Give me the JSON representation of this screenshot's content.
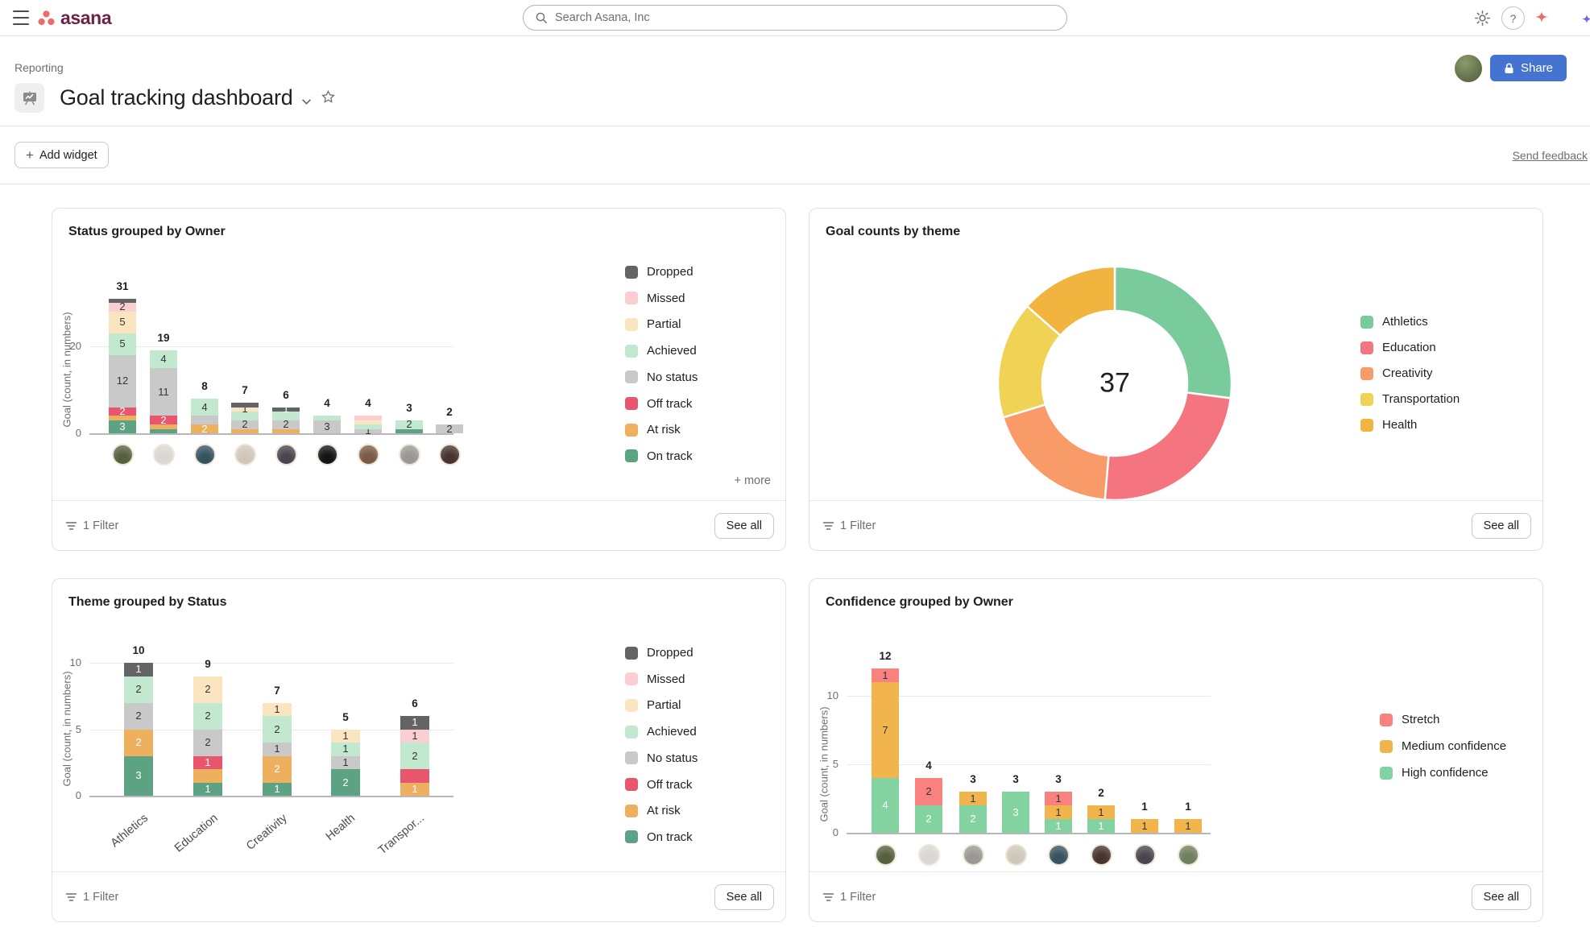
{
  "topbar": {
    "brand": "asana",
    "search_placeholder": "Search Asana, Inc"
  },
  "header": {
    "breadcrumb": "Reporting",
    "title": "Goal tracking dashboard",
    "share_label": "Share"
  },
  "toolbar": {
    "add_widget_plus": "+",
    "add_widget_label": "Add widget",
    "send_feedback_label": "Send feedback"
  },
  "footer_labels": {
    "filter": "1 Filter",
    "see_all": "See all"
  },
  "accent_colors": {
    "share_button": "#4573d2",
    "brand_coral": "#f06a6a",
    "wordmark": "#6d2347"
  },
  "segment_colors": {
    "dropped": "#646467",
    "missed": "#fbced3",
    "partial": "#fbe5c1",
    "achieved": "#c2e8cf",
    "no_status": "#c9c9c9",
    "off_track": "#e8566d",
    "at_risk": "#ecb05e",
    "on_track": "#5da283",
    "stretch": "#f9827e",
    "medium": "#f2b44c",
    "high": "#82d3a0"
  },
  "chart_data": [
    {
      "id": "status-by-owner",
      "type": "stacked_bar",
      "title": "Status grouped by Owner",
      "ylabel": "Goal (count, in numbers)",
      "y_ticks": [
        0,
        20
      ],
      "ylim": [
        0,
        33
      ],
      "grid": true,
      "legend_position": "right",
      "legend_more": "+ more",
      "x_axis": "owners (avatars)",
      "legend": [
        {
          "key": "dropped",
          "label": "Dropped",
          "color": "#646467"
        },
        {
          "key": "missed",
          "label": "Missed",
          "color": "#fbced3"
        },
        {
          "key": "partial",
          "label": "Partial",
          "color": "#fbe5c1"
        },
        {
          "key": "achieved",
          "label": "Achieved",
          "color": "#c2e8cf"
        },
        {
          "key": "no_status",
          "label": "No status",
          "color": "#c9c9c9"
        },
        {
          "key": "off_track",
          "label": "Off track",
          "color": "#e8566d"
        },
        {
          "key": "at_risk",
          "label": "At risk",
          "color": "#ecb05e"
        },
        {
          "key": "on_track",
          "label": "On track",
          "color": "#5da283"
        }
      ],
      "bars": [
        {
          "total": 31,
          "avatar": "#55603f",
          "segments": [
            [
              "on_track",
              3,
              "3",
              "w"
            ],
            [
              "at_risk",
              1,
              "",
              ""
            ],
            [
              "off_track",
              2,
              "2",
              "w"
            ],
            [
              "no_status",
              12,
              "12",
              "d"
            ],
            [
              "achieved",
              5,
              "5",
              "d"
            ],
            [
              "partial",
              5,
              "5",
              "d"
            ],
            [
              "missed",
              2,
              "2",
              "d"
            ],
            [
              "dropped",
              1,
              "",
              ""
            ]
          ]
        },
        {
          "total": 19,
          "avatar": "#d9d7d3",
          "segments": [
            [
              "on_track",
              1,
              "",
              ""
            ],
            [
              "at_risk",
              1,
              "",
              ""
            ],
            [
              "off_track",
              2,
              "2",
              "w"
            ],
            [
              "no_status",
              11,
              "11",
              "d"
            ],
            [
              "achieved",
              4,
              "4",
              "d"
            ]
          ]
        },
        {
          "total": 8,
          "avatar": "#365360",
          "segments": [
            [
              "at_risk",
              2,
              "2",
              "w"
            ],
            [
              "no_status",
              2,
              "",
              ""
            ],
            [
              "achieved",
              4,
              "4",
              "d"
            ]
          ]
        },
        {
          "total": 7,
          "avatar": "#cfc8ba",
          "segments": [
            [
              "at_risk",
              1,
              "",
              ""
            ],
            [
              "no_status",
              2,
              "2",
              "d"
            ],
            [
              "achieved",
              2,
              "",
              ""
            ],
            [
              "partial",
              1,
              "1",
              "d"
            ],
            [
              "dropped",
              1,
              "",
              ""
            ]
          ]
        },
        {
          "total": 6,
          "avatar": "#4a4550",
          "segments": [
            [
              "at_risk",
              1,
              "",
              ""
            ],
            [
              "no_status",
              2,
              "2",
              "d"
            ],
            [
              "achieved",
              2,
              "",
              ""
            ],
            [
              "dropped",
              1,
              "1",
              "w"
            ]
          ]
        },
        {
          "total": 4,
          "avatar": "#141416",
          "segments": [
            [
              "no_status",
              3,
              "3",
              "d"
            ],
            [
              "achieved",
              1,
              "",
              ""
            ]
          ]
        },
        {
          "total": 4,
          "avatar": "#7a5a45",
          "segments": [
            [
              "no_status",
              1,
              "1",
              "d"
            ],
            [
              "achieved",
              1,
              "",
              ""
            ],
            [
              "partial",
              1,
              "",
              ""
            ],
            [
              "missed",
              1,
              "",
              ""
            ]
          ]
        },
        {
          "total": 3,
          "avatar": "#9a9894",
          "segments": [
            [
              "on_track",
              1,
              "",
              ""
            ],
            [
              "achieved",
              2,
              "2",
              "d"
            ]
          ]
        },
        {
          "total": 2,
          "avatar": "#473430",
          "segments": [
            [
              "no_status",
              2,
              "2",
              "d"
            ]
          ]
        }
      ]
    },
    {
      "id": "goal-counts-by-theme",
      "type": "donut",
      "title": "Goal counts by theme",
      "center_total": "37",
      "legend_position": "right",
      "slices": [
        {
          "label": "Athletics",
          "value": 10,
          "color": "#79cb9c",
          "label_color": "#ffffff"
        },
        {
          "label": "Education",
          "value": 9,
          "color": "#f4757f",
          "label_color": "#ffffff"
        },
        {
          "label": "Creativity",
          "value": 7,
          "color": "#f89b68",
          "label_color": "#1e1f21"
        },
        {
          "label": "Transportation",
          "value": 6,
          "color": "#f0d355",
          "label_color": "#1e1f21"
        },
        {
          "label": "Health",
          "value": 5,
          "color": "#f0b43f",
          "label_color": "#1e1f21"
        }
      ]
    },
    {
      "id": "theme-by-status",
      "type": "stacked_bar",
      "title": "Theme grouped by Status",
      "ylabel": "Goal (count, in numbers)",
      "y_ticks": [
        0,
        5,
        10
      ],
      "ylim": [
        0,
        11
      ],
      "grid": true,
      "legend_position": "right",
      "legend": [
        {
          "key": "dropped",
          "label": "Dropped",
          "color": "#646467"
        },
        {
          "key": "missed",
          "label": "Missed",
          "color": "#fbced3"
        },
        {
          "key": "partial",
          "label": "Partial",
          "color": "#fbe5c1"
        },
        {
          "key": "achieved",
          "label": "Achieved",
          "color": "#c2e8cf"
        },
        {
          "key": "no_status",
          "label": "No status",
          "color": "#c9c9c9"
        },
        {
          "key": "off_track",
          "label": "Off track",
          "color": "#e8566d"
        },
        {
          "key": "at_risk",
          "label": "At risk",
          "color": "#ecb05e"
        },
        {
          "key": "on_track",
          "label": "On track",
          "color": "#5da283"
        }
      ],
      "bars": [
        {
          "total": 10,
          "category": "Athletics",
          "segments": [
            [
              "on_track",
              3,
              "3",
              "w"
            ],
            [
              "at_risk",
              2,
              "2",
              "w"
            ],
            [
              "no_status",
              2,
              "2",
              "d"
            ],
            [
              "achieved",
              2,
              "2",
              "d"
            ],
            [
              "dropped",
              1,
              "1",
              "w"
            ]
          ]
        },
        {
          "total": 9,
          "category": "Education",
          "segments": [
            [
              "on_track",
              1,
              "1",
              "w"
            ],
            [
              "at_risk",
              1,
              "",
              ""
            ],
            [
              "off_track",
              1,
              "1",
              "w"
            ],
            [
              "no_status",
              2,
              "2",
              "d"
            ],
            [
              "achieved",
              2,
              "2",
              "d"
            ],
            [
              "partial",
              2,
              "2",
              "d"
            ]
          ]
        },
        {
          "total": 7,
          "category": "Creativity",
          "segments": [
            [
              "on_track",
              1,
              "1",
              "w"
            ],
            [
              "at_risk",
              2,
              "2",
              "w"
            ],
            [
              "no_status",
              1,
              "1",
              "d"
            ],
            [
              "achieved",
              2,
              "2",
              "d"
            ],
            [
              "partial",
              1,
              "1",
              "d"
            ]
          ]
        },
        {
          "total": 5,
          "category": "Health",
          "segments": [
            [
              "on_track",
              2,
              "2",
              "w"
            ],
            [
              "no_status",
              1,
              "1",
              "d"
            ],
            [
              "achieved",
              1,
              "1",
              "d"
            ],
            [
              "partial",
              1,
              "1",
              "d"
            ]
          ]
        },
        {
          "total": 6,
          "category": "Transpor...",
          "segments": [
            [
              "at_risk",
              1,
              "1",
              "w"
            ],
            [
              "off_track",
              1,
              "",
              ""
            ],
            [
              "achieved",
              2,
              "2",
              "d"
            ],
            [
              "missed",
              1,
              "1",
              "d"
            ],
            [
              "dropped",
              1,
              "1",
              "w"
            ]
          ]
        }
      ]
    },
    {
      "id": "confidence-by-owner",
      "type": "stacked_bar",
      "title": "Confidence grouped by Owner",
      "ylabel": "Goal (count, in numbers)",
      "y_ticks": [
        0,
        5,
        10
      ],
      "ylim": [
        0,
        13
      ],
      "grid": true,
      "legend_position": "right",
      "x_axis": "owners (avatars)",
      "legend": [
        {
          "key": "stretch",
          "label": "Stretch",
          "color": "#f9827e"
        },
        {
          "key": "medium",
          "label": "Medium confidence",
          "color": "#f2b44c"
        },
        {
          "key": "high",
          "label": "High confidence",
          "color": "#82d3a0"
        }
      ],
      "bars": [
        {
          "total": 12,
          "avatar": "#55603f",
          "segments": [
            [
              "high",
              4,
              "4",
              "w"
            ],
            [
              "medium",
              7,
              "7",
              "d"
            ],
            [
              "stretch",
              1,
              "1",
              "d"
            ]
          ]
        },
        {
          "total": 4,
          "avatar": "#d9d7d3",
          "segments": [
            [
              "high",
              2,
              "2",
              "w"
            ],
            [
              "stretch",
              2,
              "2",
              "d"
            ]
          ]
        },
        {
          "total": 3,
          "avatar": "#9a9894",
          "segments": [
            [
              "high",
              2,
              "2",
              "w"
            ],
            [
              "medium",
              1,
              "1",
              "d"
            ]
          ]
        },
        {
          "total": 3,
          "avatar": "#cfc8ba",
          "segments": [
            [
              "high",
              3,
              "3",
              "w"
            ]
          ]
        },
        {
          "total": 3,
          "avatar": "#365360",
          "segments": [
            [
              "high",
              1,
              "1",
              "w"
            ],
            [
              "medium",
              1,
              "1",
              "d"
            ],
            [
              "stretch",
              1,
              "1",
              "d"
            ]
          ]
        },
        {
          "total": 2,
          "avatar": "#473430",
          "segments": [
            [
              "high",
              1,
              "1",
              "w"
            ],
            [
              "medium",
              1,
              "1",
              "d"
            ]
          ]
        },
        {
          "total": 1,
          "avatar": "#4a4550",
          "segments": [
            [
              "medium",
              1,
              "1",
              "d"
            ]
          ]
        },
        {
          "total": 1,
          "avatar": "#6e7f5e",
          "segments": [
            [
              "medium",
              1,
              "1",
              "d"
            ]
          ]
        }
      ]
    }
  ]
}
